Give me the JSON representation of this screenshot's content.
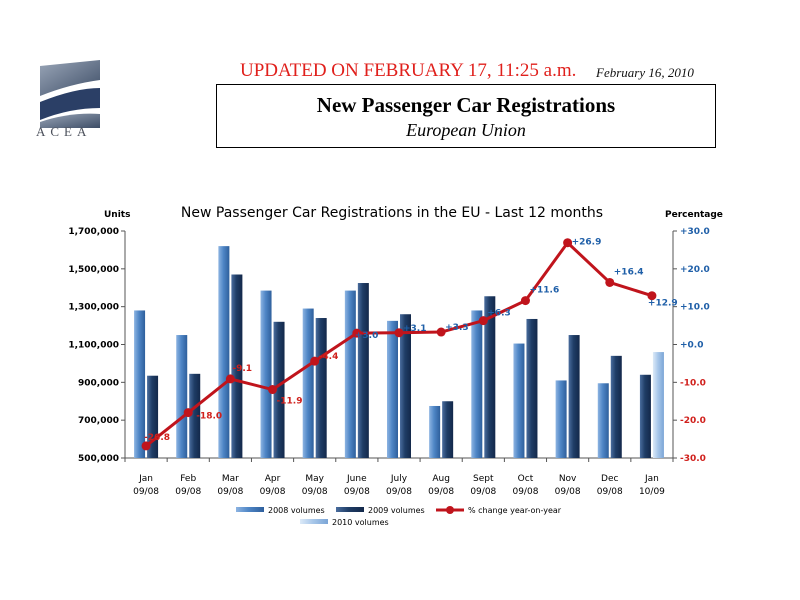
{
  "header": {
    "logo_text": "ACEA",
    "updated": "UPDATED ON FEBRUARY 17, 11:25 a.m.",
    "date": "February 16, 2010",
    "title": "New Passenger Car Registrations",
    "subtitle": "European Union"
  },
  "colors": {
    "bar_2008": "#4f86c6",
    "bar_2009": "#1f3d66",
    "bar_2010": "#a9c8ea",
    "line": "#c0141c",
    "right_axis": "#1f5fa8",
    "label_neg": "#d0201c",
    "label_pos": "#1f5fa8"
  },
  "chart_data": {
    "type": "bar",
    "title": "New Passenger Car Registrations in the EU - Last 12 months",
    "ylabel": "Units",
    "y2label": "Percentage",
    "ylim": [
      500000,
      1700000
    ],
    "y2lim": [
      -30,
      30
    ],
    "yticks": [
      "1,700,000",
      "1,500,000",
      "1,300,000",
      "1,100,000",
      "900,000",
      "700,000",
      "500,000"
    ],
    "y2ticks": [
      "+30.0",
      "+20.0",
      "+10.0",
      "+0.0",
      "-10.0",
      "-20.0",
      "-30.0"
    ],
    "categories": [
      {
        "month": "Jan",
        "period": "09/08"
      },
      {
        "month": "Feb",
        "period": "09/08"
      },
      {
        "month": "Mar",
        "period": "09/08"
      },
      {
        "month": "Apr",
        "period": "09/08"
      },
      {
        "month": "May",
        "period": "09/08"
      },
      {
        "month": "June",
        "period": "09/08"
      },
      {
        "month": "July",
        "period": "09/08"
      },
      {
        "month": "Aug",
        "period": "09/08"
      },
      {
        "month": "Sept",
        "period": "09/08"
      },
      {
        "month": "Oct",
        "period": "09/08"
      },
      {
        "month": "Nov",
        "period": "09/08"
      },
      {
        "month": "Dec",
        "period": "09/08"
      },
      {
        "month": "Jan",
        "period": "10/09"
      }
    ],
    "series": [
      {
        "name": "2008 volumes",
        "values": [
          1280000,
          1150000,
          1620000,
          1385000,
          1290000,
          1385000,
          1225000,
          775000,
          1280000,
          1105000,
          910000,
          895000,
          null
        ]
      },
      {
        "name": "2009 volumes",
        "values": [
          935000,
          945000,
          1470000,
          1220000,
          1240000,
          1425000,
          1260000,
          800000,
          1355000,
          1235000,
          1150000,
          1040000,
          940000
        ]
      },
      {
        "name": "2010 volumes",
        "values": [
          null,
          null,
          null,
          null,
          null,
          null,
          null,
          null,
          null,
          null,
          null,
          null,
          1060000
        ]
      }
    ],
    "line_series": {
      "name": "% change year-on-year",
      "values": [
        -26.8,
        -18.0,
        -9.1,
        -11.9,
        -4.4,
        3.0,
        3.1,
        3.3,
        6.3,
        11.6,
        26.9,
        16.4,
        12.9
      ],
      "labels": [
        "-26.8",
        "-18.0",
        "-9.1",
        "-11.9",
        "-4.4",
        "+3.0",
        "+3.1",
        "+3.3",
        "+6.3",
        "+11.6",
        "+26.9",
        "+16.4",
        "+12.9"
      ]
    },
    "legend": [
      "2008 volumes",
      "2009 volumes",
      "% change year-on-year",
      "2010 volumes"
    ]
  }
}
